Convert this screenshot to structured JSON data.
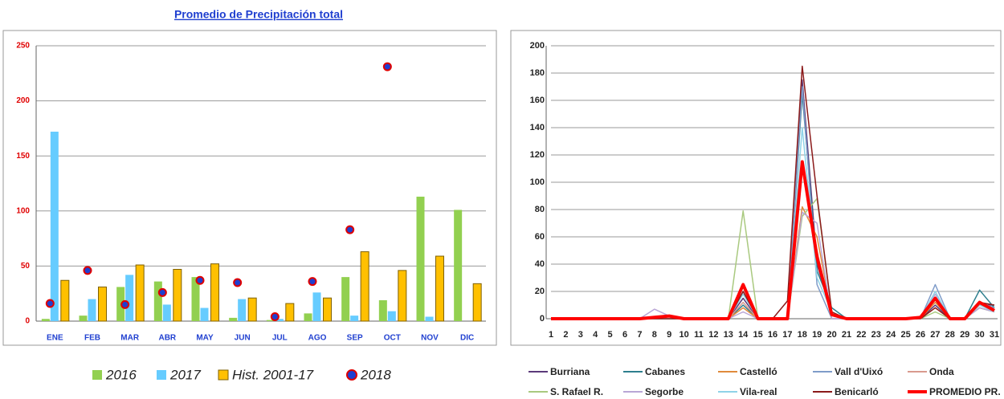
{
  "chart_data": [
    {
      "type": "bar",
      "title": "Promedio de Precipitación total",
      "categories": [
        "ENE",
        "FEB",
        "MAR",
        "ABR",
        "MAY",
        "JUN",
        "JUL",
        "AGO",
        "SEP",
        "OCT",
        "NOV",
        "DIC"
      ],
      "series": [
        {
          "name": "2016",
          "color": "#92d050",
          "values": [
            2,
            5,
            31,
            36,
            40,
            3,
            1,
            7,
            40,
            19,
            113,
            101
          ]
        },
        {
          "name": "2017",
          "color": "#66ccff",
          "values": [
            172,
            20,
            42,
            15,
            12,
            20,
            2,
            26,
            5,
            9,
            4,
            0
          ]
        },
        {
          "name": "Hist. 2001-17",
          "color": "#ffc000",
          "values": [
            37,
            31,
            51,
            47,
            52,
            21,
            16,
            21,
            63,
            46,
            59,
            34
          ]
        },
        {
          "name": "2018",
          "color": "#1f3fd0",
          "type": "scatter",
          "values": [
            16,
            46,
            15,
            26,
            37,
            35,
            4,
            36,
            83,
            231,
            null,
            null
          ]
        }
      ],
      "ylim": [
        0,
        250
      ],
      "yticks": [
        0,
        50,
        100,
        150,
        200,
        250
      ],
      "grid": true,
      "legend": "bottom"
    },
    {
      "type": "line",
      "x": [
        1,
        2,
        3,
        4,
        5,
        6,
        7,
        8,
        9,
        10,
        11,
        12,
        13,
        14,
        15,
        16,
        17,
        18,
        19,
        20,
        21,
        22,
        23,
        24,
        25,
        26,
        27,
        28,
        29,
        30,
        31
      ],
      "xlim": [
        1,
        31
      ],
      "series": [
        {
          "name": "Burriana",
          "color": "#5b3a7a",
          "values": [
            0,
            0,
            0,
            0,
            0,
            0,
            0,
            0,
            0,
            0,
            0,
            0,
            0,
            15,
            0,
            0,
            0,
            175,
            40,
            3,
            0,
            0,
            0,
            0,
            0,
            0,
            10,
            0,
            0,
            10,
            10
          ]
        },
        {
          "name": "Cabanes",
          "color": "#2e7f8e",
          "values": [
            0,
            0,
            0,
            0,
            0,
            0,
            0,
            0,
            0,
            0,
            0,
            0,
            0,
            10,
            0,
            0,
            0,
            165,
            35,
            8,
            0,
            0,
            0,
            0,
            0,
            0,
            15,
            0,
            0,
            21,
            8
          ]
        },
        {
          "name": "Castelló",
          "color": "#e08a3c",
          "values": [
            0,
            0,
            0,
            0,
            0,
            0,
            0,
            0,
            0,
            0,
            0,
            0,
            0,
            8,
            0,
            0,
            0,
            82,
            60,
            3,
            0,
            0,
            0,
            0,
            0,
            0,
            12,
            0,
            0,
            10,
            6
          ]
        },
        {
          "name": "Vall d'Uixó",
          "color": "#7f9cc9",
          "values": [
            0,
            0,
            0,
            0,
            0,
            0,
            0,
            0,
            0,
            0,
            0,
            0,
            0,
            20,
            0,
            0,
            0,
            170,
            25,
            0,
            0,
            0,
            0,
            0,
            0,
            0,
            25,
            0,
            0,
            12,
            8
          ]
        },
        {
          "name": "Onda",
          "color": "#d99a8e",
          "values": [
            0,
            0,
            0,
            0,
            0,
            0,
            0,
            0,
            0,
            0,
            0,
            0,
            0,
            12,
            0,
            0,
            0,
            110,
            50,
            0,
            0,
            0,
            0,
            0,
            0,
            0,
            15,
            0,
            0,
            8,
            5
          ]
        },
        {
          "name": "S. Rafael R.",
          "color": "#a9c97f",
          "values": [
            0,
            0,
            0,
            0,
            0,
            0,
            0,
            0,
            0,
            0,
            0,
            0,
            0,
            79,
            0,
            0,
            0,
            75,
            88,
            5,
            0,
            0,
            0,
            0,
            0,
            0,
            5,
            0,
            0,
            8,
            5
          ]
        },
        {
          "name": "Segorbe",
          "color": "#b9a6d6",
          "values": [
            0,
            0,
            0,
            0,
            0,
            0,
            0,
            7,
            2,
            0,
            0,
            0,
            0,
            5,
            0,
            0,
            0,
            78,
            70,
            0,
            0,
            0,
            0,
            0,
            0,
            0,
            18,
            0,
            0,
            8,
            5
          ]
        },
        {
          "name": "Vila-real",
          "color": "#8fd3e8",
          "values": [
            0,
            0,
            0,
            0,
            0,
            0,
            0,
            0,
            0,
            0,
            0,
            0,
            0,
            18,
            0,
            0,
            0,
            140,
            30,
            5,
            0,
            0,
            0,
            0,
            0,
            0,
            20,
            0,
            0,
            10,
            5
          ]
        },
        {
          "name": "Benicarló",
          "color": "#8b1a1a",
          "values": [
            0,
            0,
            0,
            0,
            0,
            0,
            0,
            0,
            0,
            0,
            0,
            0,
            0,
            20,
            0,
            0,
            13,
            185,
            90,
            5,
            0,
            0,
            0,
            0,
            0,
            0,
            8,
            0,
            0,
            12,
            10
          ]
        },
        {
          "name": "PROMEDIO PR.",
          "color": "#ff0000",
          "values": [
            0,
            0,
            0,
            0,
            0,
            0,
            0,
            1,
            2,
            0,
            0,
            0,
            0,
            25,
            0,
            0,
            0,
            115,
            45,
            3,
            0,
            0,
            0,
            0,
            0,
            1,
            15,
            0,
            0,
            12,
            6
          ]
        }
      ],
      "ylim": [
        0,
        200
      ],
      "yticks": [
        0,
        20,
        40,
        60,
        80,
        100,
        120,
        140,
        160,
        180,
        200
      ],
      "grid": true,
      "legend": "bottom"
    }
  ]
}
